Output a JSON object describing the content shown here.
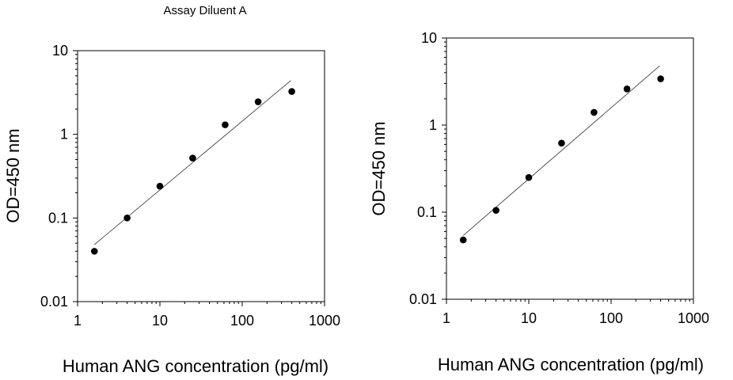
{
  "chart_data": [
    {
      "type": "scatter",
      "title": "Assay Diluent A",
      "xlabel": "Human ANG concentration (pg/ml)",
      "ylabel": "OD=450 nm",
      "xscale": "log",
      "yscale": "log",
      "xlim": [
        1,
        1000
      ],
      "ylim": [
        0.01,
        10
      ],
      "x_ticks": [
        "1",
        "10",
        "100",
        "1000"
      ],
      "y_ticks": [
        "0.01",
        "0.1",
        "1",
        "10"
      ],
      "grid": false,
      "series": [
        {
          "x": [
            1.6,
            4,
            10,
            25,
            62,
            156,
            400
          ],
          "y": [
            0.04,
            0.1,
            0.24,
            0.52,
            1.3,
            2.45,
            3.25
          ]
        }
      ],
      "fit_line": {
        "x": [
          1.6,
          390
        ],
        "y": [
          0.048,
          4.4
        ]
      }
    },
    {
      "type": "scatter",
      "title": "",
      "xlabel": "Human ANG concentration (pg/ml)",
      "ylabel": "OD=450 nm",
      "xscale": "log",
      "yscale": "log",
      "xlim": [
        1,
        1000
      ],
      "ylim": [
        0.01,
        10
      ],
      "x_ticks": [
        "1",
        "10",
        "100",
        "1000"
      ],
      "y_ticks": [
        "0.01",
        "0.1",
        "1",
        "10"
      ],
      "grid": false,
      "series": [
        {
          "x": [
            1.6,
            4,
            10,
            25,
            62,
            156,
            400
          ],
          "y": [
            0.048,
            0.105,
            0.25,
            0.62,
            1.4,
            2.6,
            3.4
          ]
        }
      ],
      "fit_line": {
        "x": [
          1.6,
          390
        ],
        "y": [
          0.054,
          4.8
        ]
      }
    }
  ]
}
